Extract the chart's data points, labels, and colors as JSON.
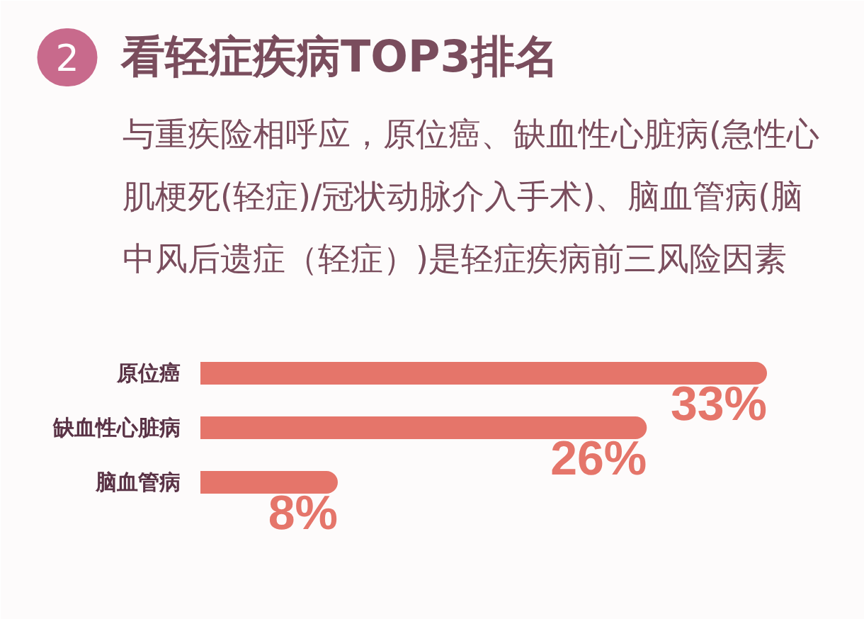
{
  "chart_data": {
    "type": "bar",
    "orientation": "horizontal",
    "title": "看轻症疾病TOP3排名",
    "subtitle": "与重疾险相呼应，原位癌、缺血性心脏病(急性心肌梗死(轻症)/冠状动脉介入手术)、脑血管病(脑中风后遗症（轻症）)是轻症疾病前三风险因素",
    "annotations": [
      "2"
    ],
    "categories": [
      "原位癌",
      "缺血性心脏病",
      "脑血管病"
    ],
    "values": [
      33,
      26,
      8
    ],
    "value_labels": [
      "33%",
      "26%",
      "8%"
    ],
    "color": "#e5756a"
  }
}
